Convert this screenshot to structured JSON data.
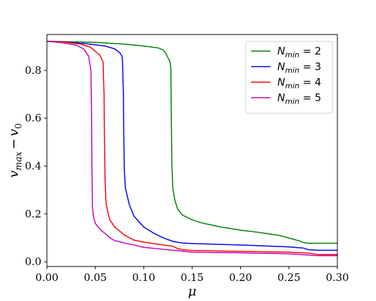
{
  "chart_data": {
    "type": "line",
    "title": "",
    "xlabel": "μ",
    "ylabel": "v_max − v_0",
    "xlim": [
      0.0,
      0.3
    ],
    "ylim": [
      -0.02,
      0.95
    ],
    "xticks": [
      0.0,
      0.05,
      0.1,
      0.15,
      0.2,
      0.25,
      0.3
    ],
    "xtick_labels": [
      "0.00",
      "0.05",
      "0.10",
      "0.15",
      "0.20",
      "0.25",
      "0.30"
    ],
    "yticks": [
      0.0,
      0.2,
      0.4,
      0.6,
      0.8
    ],
    "ytick_labels": [
      "0.0",
      "0.2",
      "0.4",
      "0.6",
      "0.8"
    ],
    "grid": false,
    "legend_position": "top-right",
    "series": [
      {
        "name": "N_min = 2",
        "label_base": "N",
        "label_sub": "min",
        "label_value": "= 2",
        "color": "#008000",
        "x": [
          0.0,
          0.02,
          0.05,
          0.08,
          0.1,
          0.115,
          0.12,
          0.123,
          0.125,
          0.127,
          0.128,
          0.1285,
          0.129,
          0.13,
          0.132,
          0.135,
          0.14,
          0.15,
          0.16,
          0.18,
          0.2,
          0.22,
          0.24,
          0.26,
          0.265,
          0.27,
          0.28,
          0.3
        ],
        "y": [
          0.922,
          0.92,
          0.917,
          0.91,
          0.902,
          0.894,
          0.886,
          0.87,
          0.853,
          0.838,
          0.81,
          0.6,
          0.42,
          0.31,
          0.26,
          0.22,
          0.195,
          0.175,
          0.162,
          0.145,
          0.132,
          0.122,
          0.11,
          0.088,
          0.08,
          0.077,
          0.077,
          0.077
        ]
      },
      {
        "name": "N_min = 3",
        "label_base": "N",
        "label_sub": "min",
        "label_value": "= 3",
        "color": "#0000ff",
        "x": [
          0.0,
          0.02,
          0.04,
          0.06,
          0.07,
          0.075,
          0.0775,
          0.078,
          0.079,
          0.0795,
          0.08,
          0.081,
          0.085,
          0.09,
          0.1,
          0.11,
          0.12,
          0.13,
          0.14,
          0.15,
          0.2,
          0.25,
          0.265,
          0.27,
          0.28,
          0.3
        ],
        "y": [
          0.922,
          0.918,
          0.912,
          0.902,
          0.89,
          0.875,
          0.86,
          0.845,
          0.7,
          0.5,
          0.38,
          0.31,
          0.24,
          0.19,
          0.145,
          0.12,
          0.1,
          0.085,
          0.078,
          0.076,
          0.07,
          0.062,
          0.057,
          0.05,
          0.048,
          0.048
        ]
      },
      {
        "name": "N_min = 4",
        "label_base": "N",
        "label_sub": "min",
        "label_value": "= 4",
        "color": "#ff0000",
        "x": [
          0.0,
          0.02,
          0.035,
          0.045,
          0.05,
          0.055,
          0.058,
          0.059,
          0.0595,
          0.06,
          0.061,
          0.063,
          0.065,
          0.07,
          0.08,
          0.09,
          0.1,
          0.12,
          0.13,
          0.135,
          0.14,
          0.15,
          0.2,
          0.25,
          0.27,
          0.28,
          0.3
        ],
        "y": [
          0.922,
          0.918,
          0.91,
          0.897,
          0.88,
          0.862,
          0.835,
          0.7,
          0.5,
          0.35,
          0.25,
          0.205,
          0.175,
          0.145,
          0.112,
          0.09,
          0.082,
          0.07,
          0.065,
          0.055,
          0.05,
          0.047,
          0.043,
          0.04,
          0.036,
          0.03,
          0.03
        ]
      },
      {
        "name": "N_min = 5",
        "label_base": "N",
        "label_sub": "min",
        "label_value": "= 5",
        "color": "#bf00bf",
        "x": [
          0.0,
          0.015,
          0.03,
          0.038,
          0.043,
          0.0455,
          0.046,
          0.0465,
          0.047,
          0.048,
          0.05,
          0.055,
          0.06,
          0.065,
          0.07,
          0.075,
          0.08,
          0.09,
          0.1,
          0.12,
          0.14,
          0.15,
          0.2,
          0.25,
          0.28,
          0.3
        ],
        "y": [
          0.922,
          0.916,
          0.906,
          0.89,
          0.86,
          0.8,
          0.65,
          0.4,
          0.23,
          0.19,
          0.16,
          0.135,
          0.118,
          0.1,
          0.088,
          0.084,
          0.078,
          0.07,
          0.06,
          0.052,
          0.044,
          0.04,
          0.037,
          0.033,
          0.025,
          0.025
        ]
      }
    ]
  }
}
